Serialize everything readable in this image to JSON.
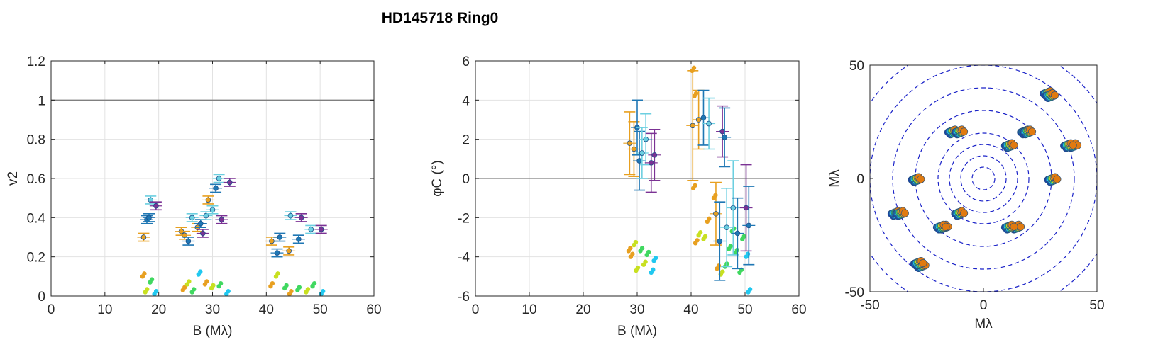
{
  "figure": {
    "title": "HD145718  Ring0"
  },
  "chart_data": [
    {
      "type": "scatter",
      "ylabel": "v2",
      "xlabel": "B (Mλ)",
      "xlim": [
        0,
        60
      ],
      "ylim": [
        0,
        1.2
      ],
      "xticks": [
        0,
        10,
        20,
        30,
        40,
        50,
        60
      ],
      "yticks": [
        0,
        0.2,
        0.4,
        0.6,
        0.8,
        1,
        1.2
      ],
      "xtick_labels": [
        "0",
        "10",
        "20",
        "30",
        "40",
        "50",
        "60"
      ],
      "ytick_labels": [
        "0",
        "0.2",
        "0.4",
        "0.6",
        "0.8",
        "1",
        "1.2"
      ],
      "grid": true,
      "reference_line": 1,
      "observed": [
        {
          "x": 17.2,
          "y": 0.3,
          "err": 0.02,
          "color": "#e8a020"
        },
        {
          "x": 17.8,
          "y": 0.39,
          "err": 0.02,
          "color": "#1f77b4"
        },
        {
          "x": 18.2,
          "y": 0.4,
          "err": 0.02,
          "color": "#1f77b4"
        },
        {
          "x": 18.5,
          "y": 0.49,
          "err": 0.02,
          "color": "#6ccfe0"
        },
        {
          "x": 19.5,
          "y": 0.46,
          "err": 0.02,
          "color": "#7b3294"
        },
        {
          "x": 24.2,
          "y": 0.33,
          "err": 0.02,
          "color": "#e8a020"
        },
        {
          "x": 24.8,
          "y": 0.31,
          "err": 0.02,
          "color": "#e8a020"
        },
        {
          "x": 25.5,
          "y": 0.28,
          "err": 0.02,
          "color": "#1f77b4"
        },
        {
          "x": 26.2,
          "y": 0.4,
          "err": 0.02,
          "color": "#6ccfe0"
        },
        {
          "x": 27.2,
          "y": 0.35,
          "err": 0.02,
          "color": "#e8a020"
        },
        {
          "x": 27.8,
          "y": 0.37,
          "err": 0.02,
          "color": "#1f77b4"
        },
        {
          "x": 28.2,
          "y": 0.32,
          "err": 0.02,
          "color": "#7b3294"
        },
        {
          "x": 28.8,
          "y": 0.41,
          "err": 0.02,
          "color": "#6ccfe0"
        },
        {
          "x": 29.2,
          "y": 0.49,
          "err": 0.02,
          "color": "#e8a020"
        },
        {
          "x": 30.0,
          "y": 0.44,
          "err": 0.02,
          "color": "#6ccfe0"
        },
        {
          "x": 30.6,
          "y": 0.55,
          "err": 0.02,
          "color": "#1f77b4"
        },
        {
          "x": 31.2,
          "y": 0.6,
          "err": 0.02,
          "color": "#6ccfe0"
        },
        {
          "x": 31.7,
          "y": 0.39,
          "err": 0.02,
          "color": "#7b3294"
        },
        {
          "x": 33.2,
          "y": 0.58,
          "err": 0.02,
          "color": "#7b3294"
        },
        {
          "x": 41.0,
          "y": 0.28,
          "err": 0.02,
          "color": "#e8a020"
        },
        {
          "x": 42.0,
          "y": 0.22,
          "err": 0.02,
          "color": "#1f77b4"
        },
        {
          "x": 42.5,
          "y": 0.3,
          "err": 0.02,
          "color": "#1f77b4"
        },
        {
          "x": 44.2,
          "y": 0.23,
          "err": 0.02,
          "color": "#e8a020"
        },
        {
          "x": 44.5,
          "y": 0.41,
          "err": 0.02,
          "color": "#6ccfe0"
        },
        {
          "x": 46.0,
          "y": 0.29,
          "err": 0.02,
          "color": "#1f77b4"
        },
        {
          "x": 46.5,
          "y": 0.4,
          "err": 0.02,
          "color": "#7b3294"
        },
        {
          "x": 48.3,
          "y": 0.34,
          "err": 0.02,
          "color": "#6ccfe0"
        },
        {
          "x": 50.2,
          "y": 0.34,
          "err": 0.02,
          "color": "#7b3294"
        }
      ],
      "model": [
        {
          "x": 17.0,
          "y": 0.1,
          "color": "#e8a020"
        },
        {
          "x": 17.5,
          "y": 0.02,
          "color": "#c8e020"
        },
        {
          "x": 18.4,
          "y": 0.07,
          "color": "#40d860"
        },
        {
          "x": 19.2,
          "y": 0.01,
          "color": "#20c8f0"
        },
        {
          "x": 24.5,
          "y": 0.03,
          "color": "#e8a020"
        },
        {
          "x": 25.3,
          "y": 0.06,
          "color": "#c8e020"
        },
        {
          "x": 26.2,
          "y": 0.02,
          "color": "#40d860"
        },
        {
          "x": 27.4,
          "y": 0.11,
          "color": "#20c8f0"
        },
        {
          "x": 28.6,
          "y": 0.06,
          "color": "#e8a020"
        },
        {
          "x": 29.8,
          "y": 0.04,
          "color": "#c8e020"
        },
        {
          "x": 31.2,
          "y": 0.05,
          "color": "#40d860"
        },
        {
          "x": 32.6,
          "y": 0.01,
          "color": "#20c8f0"
        },
        {
          "x": 40.8,
          "y": 0.05,
          "color": "#e8a020"
        },
        {
          "x": 41.8,
          "y": 0.1,
          "color": "#c8e020"
        },
        {
          "x": 43.4,
          "y": 0.04,
          "color": "#40d860"
        },
        {
          "x": 44.3,
          "y": 0.01,
          "color": "#e8a020"
        },
        {
          "x": 45.8,
          "y": 0.03,
          "color": "#40d860"
        },
        {
          "x": 47.4,
          "y": 0.02,
          "color": "#c8e020"
        },
        {
          "x": 48.6,
          "y": 0.05,
          "color": "#40d860"
        },
        {
          "x": 50.2,
          "y": 0.01,
          "color": "#20c8f0"
        }
      ]
    },
    {
      "type": "scatter",
      "ylabel": "φC (°)",
      "xlabel": "B (Mλ)",
      "xlim": [
        0,
        60
      ],
      "ylim": [
        -6,
        6
      ],
      "xticks": [
        0,
        10,
        20,
        30,
        40,
        50,
        60
      ],
      "yticks": [
        -6,
        -4,
        -2,
        0,
        2,
        4,
        6
      ],
      "xtick_labels": [
        "0",
        "10",
        "20",
        "30",
        "40",
        "50",
        "60"
      ],
      "ytick_labels": [
        "-6",
        "-4",
        "-2",
        "0",
        "2",
        "4",
        "6"
      ],
      "grid": true,
      "reference_line": 0,
      "observed": [
        {
          "x": 28.6,
          "y": 1.8,
          "err": 1.6,
          "color": "#e8a020"
        },
        {
          "x": 29.4,
          "y": 1.5,
          "err": 1.4,
          "color": "#e8a020"
        },
        {
          "x": 30.0,
          "y": 2.6,
          "err": 1.4,
          "color": "#1f77b4"
        },
        {
          "x": 30.4,
          "y": 0.9,
          "err": 1.5,
          "color": "#1f77b4"
        },
        {
          "x": 30.9,
          "y": 1.3,
          "err": 1.3,
          "color": "#6ccfe0"
        },
        {
          "x": 31.6,
          "y": 2.0,
          "err": 1.3,
          "color": "#6ccfe0"
        },
        {
          "x": 32.6,
          "y": 0.8,
          "err": 1.5,
          "color": "#7b3294"
        },
        {
          "x": 33.2,
          "y": 1.2,
          "err": 1.3,
          "color": "#7b3294"
        },
        {
          "x": 40.3,
          "y": 2.7,
          "err": 2.8,
          "color": "#e8a020"
        },
        {
          "x": 41.4,
          "y": 3.0,
          "err": 1.5,
          "color": "#e8a020"
        },
        {
          "x": 42.3,
          "y": 3.1,
          "err": 1.4,
          "color": "#1f77b4"
        },
        {
          "x": 43.3,
          "y": 2.8,
          "err": 1.3,
          "color": "#6ccfe0"
        },
        {
          "x": 44.6,
          "y": -1.8,
          "err": 1.6,
          "color": "#e8a020"
        },
        {
          "x": 45.3,
          "y": -3.2,
          "err": 2.0,
          "color": "#1f77b4"
        },
        {
          "x": 45.8,
          "y": 2.4,
          "err": 1.3,
          "color": "#7b3294"
        },
        {
          "x": 46.2,
          "y": 2.1,
          "err": 1.5,
          "color": "#1f77b4"
        },
        {
          "x": 46.6,
          "y": -2.5,
          "err": 2.0,
          "color": "#6ccfe0"
        },
        {
          "x": 47.8,
          "y": -1.5,
          "err": 2.4,
          "color": "#6ccfe0"
        },
        {
          "x": 48.6,
          "y": -2.8,
          "err": 1.8,
          "color": "#1f77b4"
        },
        {
          "x": 50.2,
          "y": -1.5,
          "err": 2.2,
          "color": "#7b3294"
        },
        {
          "x": 50.7,
          "y": -2.4,
          "err": 2.0,
          "color": "#1f77b4"
        }
      ],
      "model": [
        {
          "x": 28.4,
          "y": -3.7,
          "color": "#e8a020"
        },
        {
          "x": 28.8,
          "y": -4.0,
          "color": "#e8a020"
        },
        {
          "x": 29.4,
          "y": -3.4,
          "color": "#c8e020"
        },
        {
          "x": 29.8,
          "y": -4.7,
          "color": "#c8e020"
        },
        {
          "x": 30.6,
          "y": -3.7,
          "color": "#40d860"
        },
        {
          "x": 31.2,
          "y": -4.4,
          "color": "#c8e020"
        },
        {
          "x": 31.8,
          "y": -3.9,
          "color": "#40d860"
        },
        {
          "x": 32.6,
          "y": -4.8,
          "color": "#20c8f0"
        },
        {
          "x": 33.1,
          "y": -4.2,
          "color": "#20c8f0"
        },
        {
          "x": 40.2,
          "y": 5.5,
          "color": "#e8a020"
        },
        {
          "x": 40.6,
          "y": 4.2,
          "color": "#e8a020"
        },
        {
          "x": 40.4,
          "y": -0.5,
          "color": "#e8a020"
        },
        {
          "x": 40.8,
          "y": -3.3,
          "color": "#e8a020"
        },
        {
          "x": 41.4,
          "y": -2.9,
          "color": "#c8e020"
        },
        {
          "x": 42.3,
          "y": -3.1,
          "color": "#c8e020"
        },
        {
          "x": 43.0,
          "y": -2.2,
          "color": "#e8a020"
        },
        {
          "x": 44.2,
          "y": -1.0,
          "color": "#e8a020"
        },
        {
          "x": 44.8,
          "y": -4.6,
          "color": "#e8a020"
        },
        {
          "x": 45.5,
          "y": -4.9,
          "color": "#c8e020"
        },
        {
          "x": 46.3,
          "y": -4.5,
          "color": "#40d860"
        },
        {
          "x": 47.0,
          "y": -3.6,
          "color": "#40d860"
        },
        {
          "x": 47.6,
          "y": -2.7,
          "color": "#40d860"
        },
        {
          "x": 48.2,
          "y": -3.8,
          "color": "#40d860"
        },
        {
          "x": 49.0,
          "y": -4.8,
          "color": "#40d860"
        },
        {
          "x": 49.5,
          "y": -3.1,
          "color": "#40d860"
        },
        {
          "x": 50.2,
          "y": -4.0,
          "color": "#20c8f0"
        },
        {
          "x": 50.6,
          "y": -5.8,
          "color": "#20c8f0"
        }
      ]
    },
    {
      "type": "scatter",
      "subtype": "uv-coverage",
      "xlabel": "Mλ",
      "ylabel": "Mλ",
      "xlim": [
        -50,
        50
      ],
      "ylim": [
        -50,
        50
      ],
      "xticks": [
        -50,
        0,
        50
      ],
      "yticks": [
        -50,
        0,
        50
      ],
      "xtick_labels": [
        "-50",
        "0",
        "50"
      ],
      "ytick_labels": [
        "-50",
        "0",
        "50"
      ],
      "grid": false,
      "circle_radii": [
        5,
        10,
        15,
        20,
        30,
        40,
        50,
        60
      ],
      "clusters": [
        {
          "u": 28,
          "v": 38
        },
        {
          "u": 39,
          "v": 15
        },
        {
          "u": 30,
          "v": 0
        },
        {
          "u": 18,
          "v": 21
        },
        {
          "u": 11,
          "v": 15
        },
        {
          "u": -14,
          "v": 21
        },
        {
          "u": -30,
          "v": 0
        },
        {
          "u": -37,
          "v": -15
        },
        {
          "u": -11,
          "v": -15
        },
        {
          "u": -19,
          "v": -21
        },
        {
          "u": 11,
          "v": -21
        },
        {
          "u": -29,
          "v": -37
        }
      ]
    }
  ]
}
